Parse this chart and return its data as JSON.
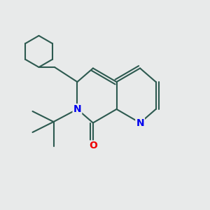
{
  "bg_color": "#e8eaea",
  "bond_color": "#2d5a50",
  "bond_width": 1.5,
  "N_color": "#0000ee",
  "O_color": "#ee0000",
  "font_size": 10,
  "figsize": [
    3.0,
    3.0
  ],
  "dpi": 100,
  "xlim": [
    0,
    10
  ],
  "ylim": [
    0,
    10
  ]
}
